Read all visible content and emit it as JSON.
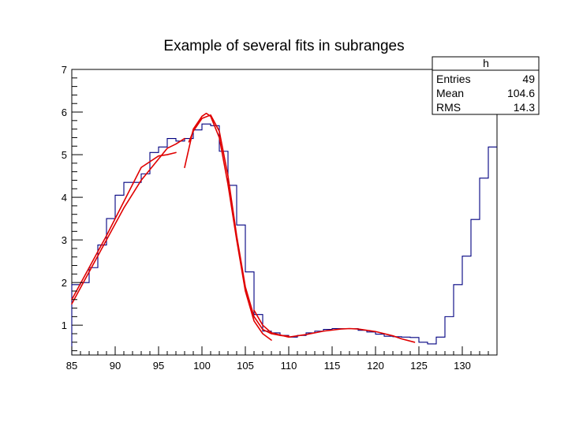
{
  "chart_data": {
    "type": "histogram",
    "title": "Example of several fits in subranges",
    "xlabel": "",
    "ylabel": "",
    "xlim": [
      85,
      134
    ],
    "ylim": [
      0.3,
      7
    ],
    "x_ticks": [
      85,
      90,
      95,
      100,
      105,
      110,
      115,
      120,
      125,
      130
    ],
    "y_ticks": [
      1,
      2,
      3,
      4,
      5,
      6,
      7
    ],
    "grid": false,
    "histogram": {
      "name": "h",
      "bin_width": 1,
      "bin_start": 85,
      "values": [
        1.95,
        2.0,
        2.35,
        2.88,
        3.5,
        4.05,
        4.35,
        4.35,
        4.55,
        5.05,
        5.18,
        5.38,
        5.32,
        5.38,
        5.58,
        5.72,
        5.68,
        5.08,
        4.28,
        3.35,
        2.25,
        1.25,
        0.86,
        0.82,
        0.76,
        0.72,
        0.76,
        0.82,
        0.86,
        0.9,
        0.92,
        0.92,
        0.92,
        0.88,
        0.84,
        0.79,
        0.74,
        0.73,
        0.72,
        0.71,
        0.6,
        0.56,
        0.72,
        1.2,
        1.95,
        2.62,
        3.48,
        4.45,
        5.18
      ],
      "color": "#000080"
    },
    "fits": [
      {
        "color": "#e00000",
        "x": [
          85,
          87,
          89,
          91,
          93,
          95,
          96,
          97,
          98
        ],
        "y": [
          1.5,
          2.25,
          3.0,
          3.75,
          4.4,
          4.9,
          5.15,
          5.25,
          5.38
        ]
      },
      {
        "color": "#e00000",
        "x": [
          85,
          87,
          89,
          91,
          93,
          95,
          96,
          97
        ],
        "y": [
          1.6,
          2.35,
          3.1,
          3.9,
          4.7,
          4.97,
          5.0,
          5.05
        ]
      },
      {
        "color": "#e00000",
        "x": [
          98,
          99,
          100,
          100.5,
          101,
          102,
          103,
          104,
          105,
          106,
          107,
          108
        ],
        "y": [
          4.7,
          5.6,
          5.9,
          5.97,
          5.9,
          5.4,
          4.3,
          3.0,
          1.8,
          1.1,
          0.8,
          0.65
        ]
      },
      {
        "color": "#e00000",
        "x": [
          98.5,
          99,
          100,
          101,
          102,
          103,
          104,
          105,
          106,
          107,
          108,
          109,
          110
        ],
        "y": [
          5.3,
          5.55,
          5.85,
          5.93,
          5.55,
          4.5,
          3.1,
          1.9,
          1.2,
          0.9,
          0.8,
          0.76,
          0.74
        ]
      },
      {
        "color": "#e00000",
        "x": [
          106,
          107,
          108,
          110,
          112,
          114,
          116,
          117,
          118,
          120,
          122,
          123,
          124.5
        ],
        "y": [
          1.35,
          1.0,
          0.82,
          0.72,
          0.78,
          0.86,
          0.91,
          0.92,
          0.91,
          0.85,
          0.75,
          0.68,
          0.6
        ]
      }
    ]
  },
  "stats_box": {
    "name": "h",
    "rows": [
      {
        "label": "Entries",
        "value": "49"
      },
      {
        "label": "Mean",
        "value": "104.6"
      },
      {
        "label": "RMS",
        "value": "14.3"
      }
    ]
  }
}
